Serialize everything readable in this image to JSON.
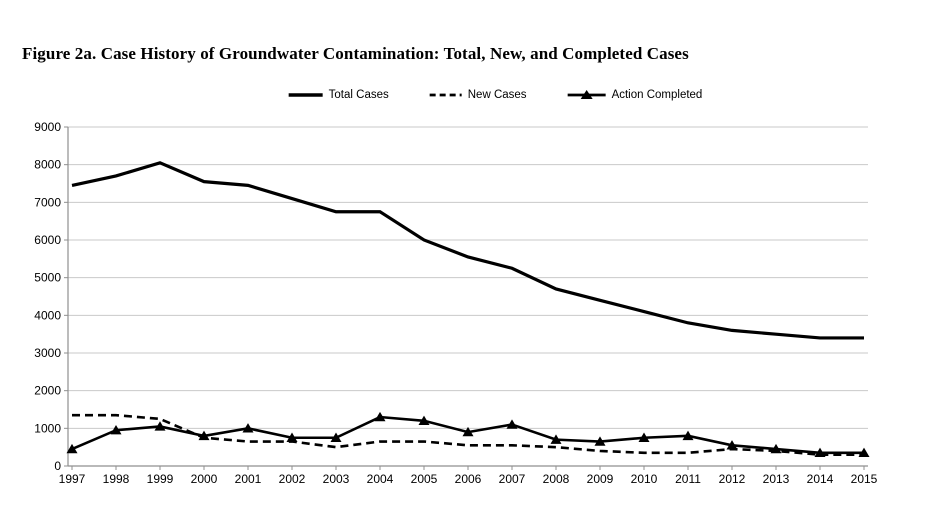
{
  "chart_data": {
    "type": "line",
    "title": "Figure 2a. Case History of Groundwater Contamination: Total, New, and Completed Cases",
    "x": [
      "1997",
      "1998",
      "1999",
      "2000",
      "2001",
      "2002",
      "2003",
      "2004",
      "2005",
      "2006",
      "2007",
      "2008",
      "2009",
      "2010",
      "2011",
      "2012",
      "2013",
      "2014",
      "2015"
    ],
    "series": [
      {
        "name": "Total Cases",
        "style": "solid-thick",
        "marker": "none",
        "values": [
          7450,
          7700,
          8050,
          7550,
          7450,
          7100,
          6750,
          6750,
          6000,
          5550,
          5250,
          4700,
          4400,
          4100,
          3800,
          3600,
          3500,
          3400,
          3400
        ]
      },
      {
        "name": "New Cases",
        "style": "dashed",
        "marker": "none",
        "values": [
          1350,
          1350,
          1250,
          750,
          650,
          650,
          500,
          650,
          650,
          550,
          550,
          500,
          400,
          350,
          350,
          450,
          400,
          300,
          300
        ]
      },
      {
        "name": "Action Completed",
        "style": "solid",
        "marker": "triangle",
        "values": [
          450,
          950,
          1050,
          800,
          1000,
          750,
          750,
          1300,
          1200,
          900,
          1100,
          700,
          650,
          750,
          800,
          550,
          450,
          350,
          350
        ]
      }
    ],
    "xlabel": "",
    "ylabel": "",
    "ylim": [
      0,
      9000
    ],
    "ytick_step": 1000,
    "grid": "horizontal",
    "legend_position": "top-center",
    "colors": {
      "series": "#000000",
      "gridline": "#c9c9c9",
      "axis": "#8f8f8f",
      "text": "#000000",
      "background": "#ffffff"
    }
  }
}
